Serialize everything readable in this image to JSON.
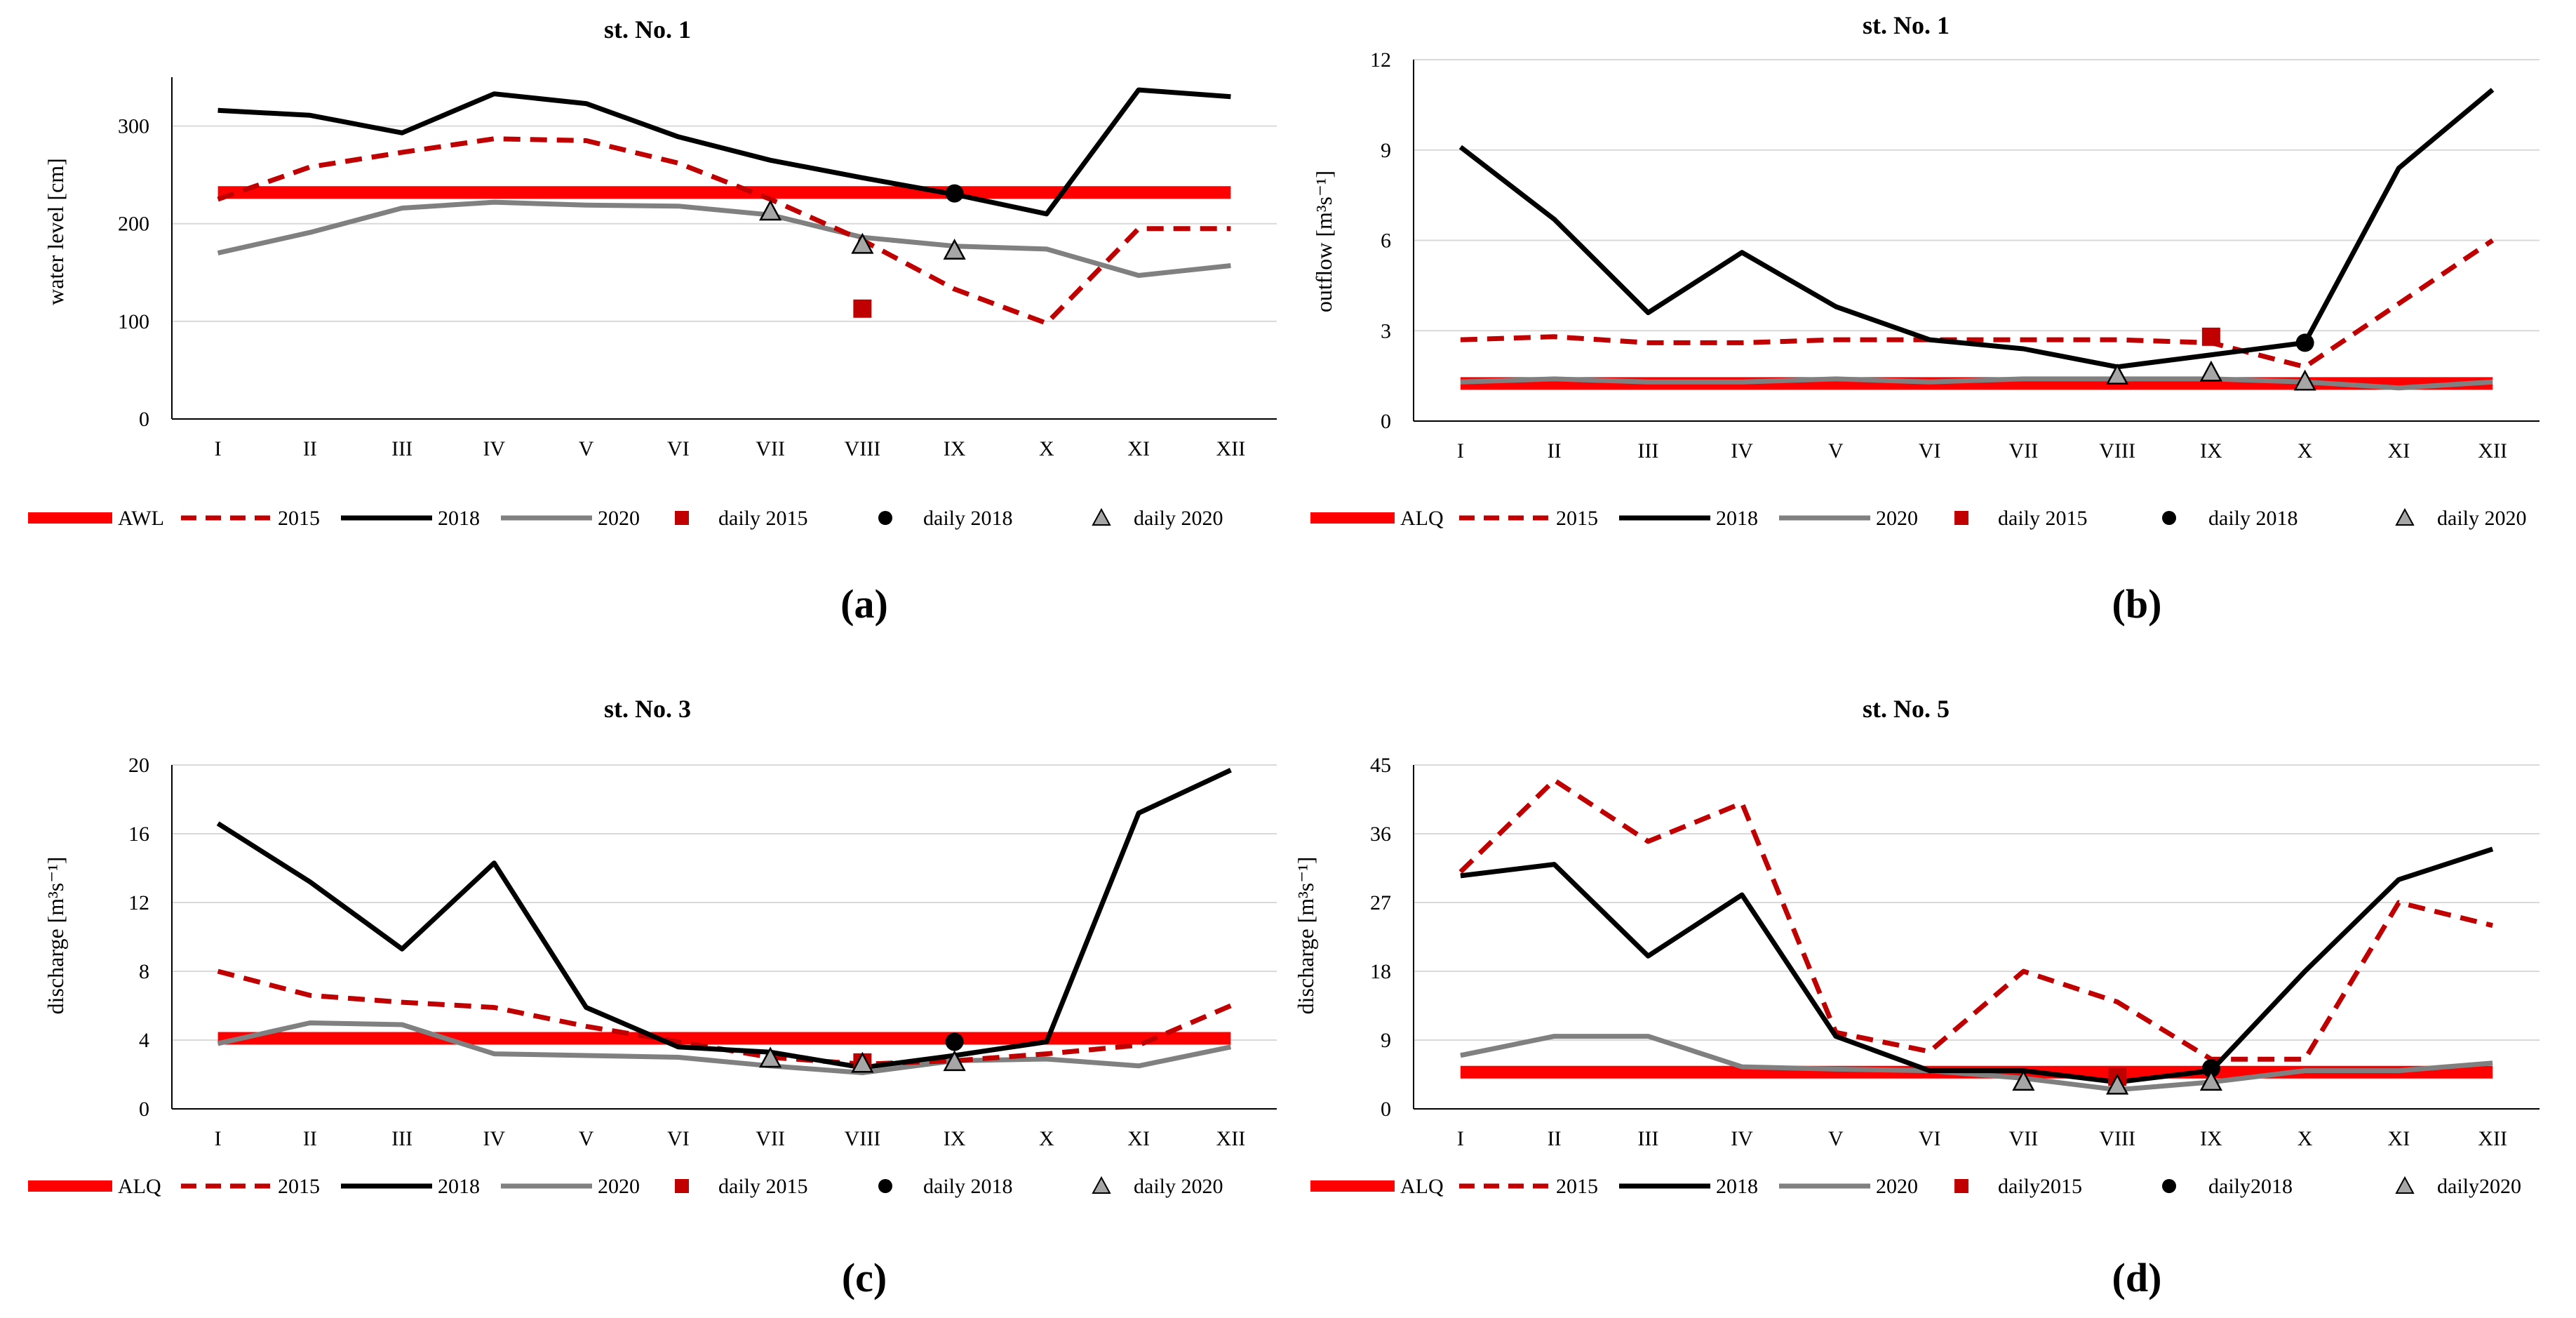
{
  "figure": {
    "panel_labels": [
      "(a)",
      "(b)",
      "(c)",
      "(d)"
    ]
  },
  "colors": {
    "reference": "#ff0000",
    "y2015": "#c00000",
    "y2018": "#000000",
    "y2020": "#808080",
    "daily2015": "#c00000",
    "daily2018": "#000000",
    "daily2020": "#a6a6a6",
    "gridline": "#d9d9d9"
  },
  "chart_data": [
    {
      "type": "line",
      "title": "st. No. 1",
      "ylabel": "water level [cm]",
      "categories": [
        "I",
        "II",
        "III",
        "IV",
        "V",
        "VI",
        "VII",
        "VIII",
        "IX",
        "X",
        "XI",
        "XII"
      ],
      "ylim": [
        0,
        350
      ],
      "yticks": [
        0,
        100,
        200,
        300
      ],
      "grid": true,
      "legend_position": "bottom",
      "reference": {
        "name": "AWL",
        "value": 232
      },
      "series": [
        {
          "name": "2015",
          "values": [
            225,
            258,
            273,
            287,
            285,
            262,
            225,
            183,
            133,
            98,
            195,
            195
          ]
        },
        {
          "name": "2018",
          "values": [
            316,
            311,
            293,
            333,
            323,
            289,
            265,
            247,
            230,
            210,
            337,
            330
          ]
        },
        {
          "name": "2020",
          "values": [
            170,
            191,
            216,
            222,
            219,
            218,
            209,
            186,
            177,
            174,
            147,
            157
          ]
        }
      ],
      "daily": [
        {
          "name": "daily 2015",
          "marker": "square",
          "points": [
            [
              "VIII",
              113
            ]
          ]
        },
        {
          "name": "daily 2018",
          "marker": "circle",
          "points": [
            [
              "IX",
              231
            ]
          ]
        },
        {
          "name": "daily 2020",
          "marker": "triangle",
          "points": [
            [
              "VII",
              212
            ],
            [
              "VIII",
              178
            ],
            [
              "IX",
              172
            ]
          ]
        }
      ]
    },
    {
      "type": "line",
      "title": "st. No. 1",
      "ylabel": "outflow [m³s⁻¹]",
      "categories": [
        "I",
        "II",
        "III",
        "IV",
        "V",
        "VI",
        "VII",
        "VIII",
        "IX",
        "X",
        "XI",
        "XII"
      ],
      "ylim": [
        0,
        12
      ],
      "yticks": [
        0,
        3,
        6,
        9,
        12
      ],
      "grid": true,
      "legend_position": "bottom",
      "reference": {
        "name": "ALQ",
        "value": 1.25
      },
      "series": [
        {
          "name": "2015",
          "values": [
            2.7,
            2.8,
            2.6,
            2.6,
            2.7,
            2.7,
            2.7,
            2.7,
            2.6,
            1.8,
            3.9,
            6.0
          ]
        },
        {
          "name": "2018",
          "values": [
            9.1,
            6.7,
            3.6,
            5.6,
            3.8,
            2.7,
            2.4,
            1.8,
            2.2,
            2.6,
            8.4,
            11.0
          ]
        },
        {
          "name": "2020",
          "values": [
            1.3,
            1.4,
            1.3,
            1.3,
            1.4,
            1.3,
            1.4,
            1.4,
            1.4,
            1.3,
            1.1,
            1.3
          ]
        }
      ],
      "daily": [
        {
          "name": "daily 2015",
          "marker": "square",
          "points": [
            [
              "IX",
              2.8
            ]
          ]
        },
        {
          "name": "daily 2018",
          "marker": "circle",
          "points": [
            [
              "X",
              2.6
            ]
          ]
        },
        {
          "name": "daily 2020",
          "marker": "triangle",
          "points": [
            [
              "VIII",
              1.5
            ],
            [
              "IX",
              1.6
            ],
            [
              "X",
              1.3
            ]
          ]
        }
      ]
    },
    {
      "type": "line",
      "title": "st. No. 3",
      "ylabel": "discharge [m³s⁻¹]",
      "categories": [
        "I",
        "II",
        "III",
        "IV",
        "V",
        "VI",
        "VII",
        "VIII",
        "IX",
        "X",
        "XI",
        "XII"
      ],
      "ylim": [
        0,
        20
      ],
      "yticks": [
        0,
        4,
        8,
        12,
        16,
        20
      ],
      "grid": true,
      "legend_position": "bottom",
      "reference": {
        "name": "ALQ",
        "value": 4.1
      },
      "series": [
        {
          "name": "2015",
          "values": [
            8.0,
            6.6,
            6.2,
            5.9,
            4.8,
            3.9,
            3.0,
            2.6,
            2.8,
            3.2,
            3.7,
            6.0
          ]
        },
        {
          "name": "2018",
          "values": [
            16.6,
            13.2,
            9.3,
            14.3,
            5.9,
            3.6,
            3.3,
            2.4,
            3.1,
            3.9,
            17.2,
            19.7
          ]
        },
        {
          "name": "2020",
          "values": [
            3.8,
            5.0,
            4.9,
            3.2,
            3.1,
            3.0,
            2.5,
            2.1,
            2.8,
            2.9,
            2.5,
            3.6
          ]
        }
      ],
      "daily": [
        {
          "name": "daily 2015",
          "marker": "square",
          "points": [
            [
              "VIII",
              2.7
            ]
          ]
        },
        {
          "name": "daily 2018",
          "marker": "circle",
          "points": [
            [
              "IX",
              3.9
            ]
          ]
        },
        {
          "name": "daily 2020",
          "marker": "triangle",
          "points": [
            [
              "VII",
              2.9
            ],
            [
              "VIII",
              2.6
            ],
            [
              "IX",
              2.7
            ]
          ]
        }
      ]
    },
    {
      "type": "line",
      "title": "st. No. 5",
      "ylabel": "discharge [m³s⁻¹]",
      "categories": [
        "I",
        "II",
        "III",
        "IV",
        "V",
        "VI",
        "VII",
        "VIII",
        "IX",
        "X",
        "XI",
        "XII"
      ],
      "ylim": [
        0,
        45
      ],
      "yticks": [
        0,
        9,
        18,
        27,
        36,
        45
      ],
      "grid": true,
      "legend_position": "bottom",
      "reference": {
        "name": "ALQ",
        "value": 4.8
      },
      "series": [
        {
          "name": "2015",
          "values": [
            31,
            43,
            35,
            40,
            10,
            7.5,
            18,
            14,
            6.5,
            6.5,
            27,
            24
          ]
        },
        {
          "name": "2018",
          "values": [
            30.5,
            32,
            20,
            28,
            9.5,
            5,
            5,
            3.5,
            5,
            18,
            30,
            34
          ]
        },
        {
          "name": "2020",
          "values": [
            7,
            9.5,
            9.5,
            5.5,
            5.2,
            5.0,
            4.0,
            2.5,
            3.5,
            5.0,
            5.0,
            6.0
          ]
        }
      ],
      "daily": [
        {
          "name": "daily2015",
          "marker": "square",
          "points": [
            [
              "VIII",
              4.2
            ]
          ]
        },
        {
          "name": "daily2018",
          "marker": "circle",
          "points": [
            [
              "IX",
              5.3
            ]
          ]
        },
        {
          "name": "daily2020",
          "marker": "triangle",
          "points": [
            [
              "VII",
              3.5
            ],
            [
              "VIII",
              3.0
            ],
            [
              "IX",
              3.5
            ]
          ]
        }
      ]
    }
  ]
}
